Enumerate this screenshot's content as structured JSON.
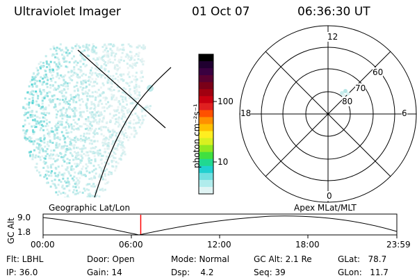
{
  "header": {
    "title": "Ultraviolet Imager",
    "date": "01 Oct 07",
    "time": "06:36:30 UT"
  },
  "colorbar": {
    "unit_label": "photon cm⁻²s⁻¹",
    "ticks": [
      "100",
      "10"
    ],
    "colors": [
      "#000000",
      "#200030",
      "#3a0040",
      "#5a0030",
      "#7a0018",
      "#a00010",
      "#c80010",
      "#e02020",
      "#ff5000",
      "#ff9000",
      "#ffc000",
      "#ffee20",
      "#d8f020",
      "#90e820",
      "#40e040",
      "#20d890",
      "#20d0d0",
      "#70e0e0",
      "#b0ecec",
      "#e0f4f4"
    ]
  },
  "polar_plot": {
    "mlt_labels": [
      "12",
      "6",
      "0",
      "18"
    ],
    "lat_labels": [
      "80",
      "70",
      "60"
    ]
  },
  "timeline": {
    "left_label": "Geographic Lat/Lon",
    "right_label": "Apex MLat/MLT",
    "y_axis_label": "GC Alt",
    "y_ticks": [
      "9.0",
      "1.8"
    ],
    "x_ticks": [
      "00:00",
      "06:00",
      "12:00",
      "18:00",
      "23:59"
    ],
    "current_time_fraction": 0.276,
    "marker_color": "#ff0000"
  },
  "info": {
    "flt": "Flt: LBHL",
    "ip": "IP: 36.0",
    "door": "Door: Open",
    "gain": "Gain: 14",
    "mode": "Mode: Normal",
    "dsp": "Dsp:    4.2",
    "gc_alt": "GC Alt: 2.1 Re",
    "seq": "Seq: 39",
    "glat": "GLat:   78.7",
    "glon": "GLon:   11.7"
  }
}
